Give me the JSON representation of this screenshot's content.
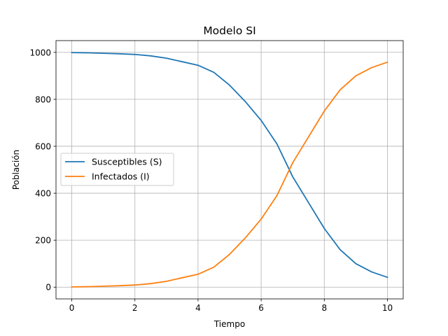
{
  "chart_data": {
    "type": "line",
    "title": "Modelo SI",
    "xlabel": "Tiempo",
    "ylabel": "Población",
    "xlim": [
      -0.5,
      10.5
    ],
    "ylim": [
      -50,
      1050
    ],
    "xticks": [
      0,
      2,
      4,
      6,
      8,
      10
    ],
    "yticks": [
      0,
      200,
      400,
      600,
      800,
      1000
    ],
    "grid": true,
    "legend_position": "center-left",
    "x": [
      0,
      0.5,
      1,
      1.5,
      2,
      2.5,
      3,
      3.5,
      4,
      4.5,
      5,
      5.5,
      6,
      6.5,
      7,
      7.5,
      8,
      8.5,
      9,
      9.5,
      10
    ],
    "series": [
      {
        "name": "Susceptibles (S)",
        "color": "#1f77b4",
        "values": [
          999,
          998,
          996,
          994,
          991,
          985,
          975,
          960,
          945,
          915,
          860,
          790,
          710,
          610,
          470,
          360,
          250,
          160,
          100,
          65,
          42
        ]
      },
      {
        "name": "Infectados (I)",
        "color": "#ff7f0e",
        "values": [
          1,
          2,
          4,
          6,
          9,
          15,
          25,
          40,
          55,
          85,
          140,
          210,
          290,
          390,
          530,
          640,
          750,
          840,
          900,
          935,
          958
        ]
      }
    ]
  }
}
